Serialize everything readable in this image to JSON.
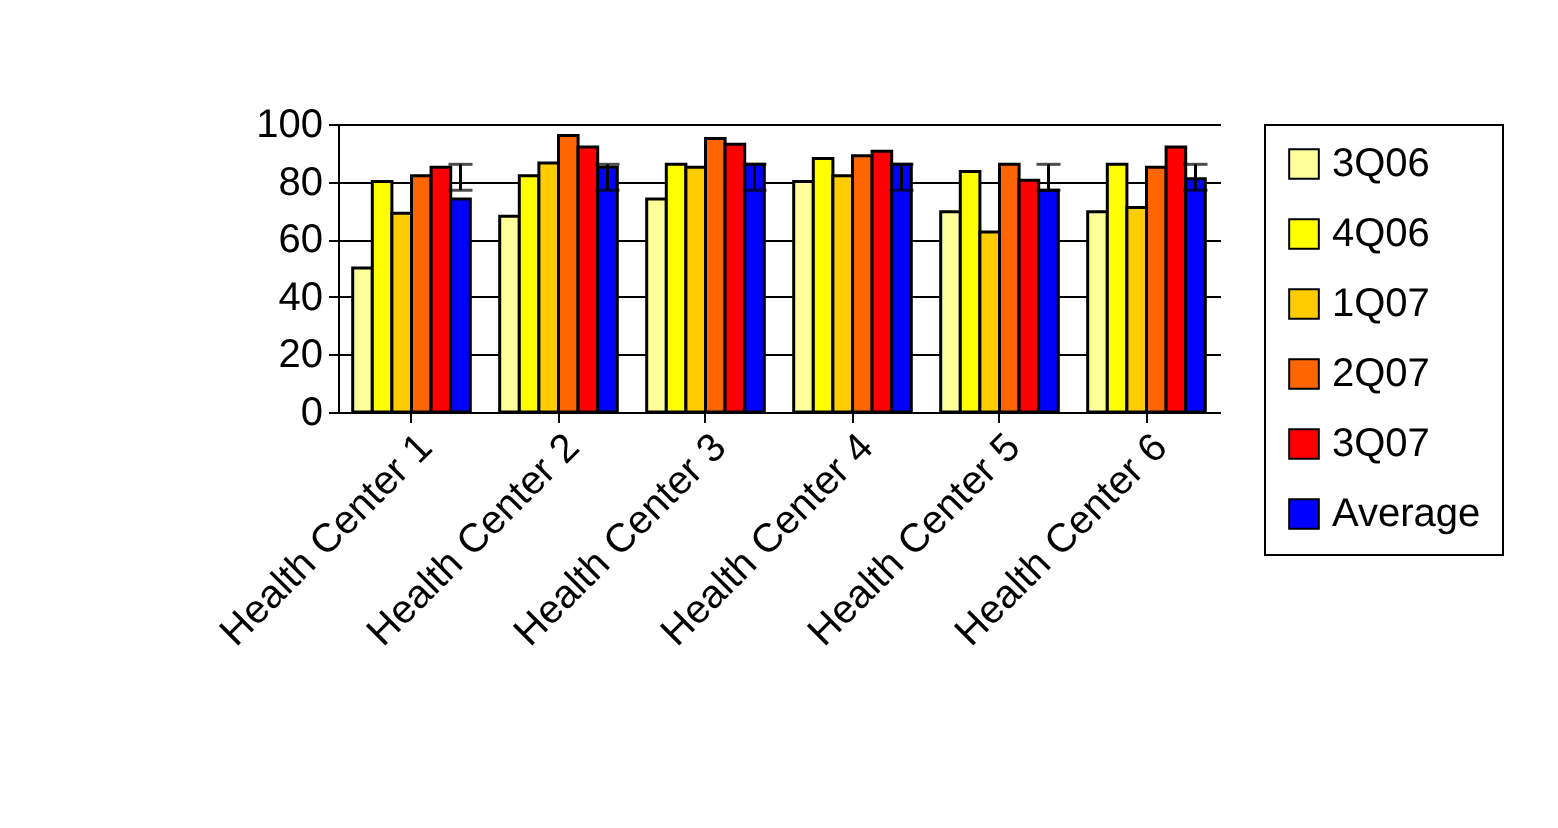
{
  "chart_data": {
    "type": "bar",
    "categories": [
      "Health Center 1",
      "Health Center 2",
      "Health Center 3",
      "Health Center 4",
      "Health Center 5",
      "Health Center 6"
    ],
    "series": [
      {
        "name": "3Q06",
        "color": "#ffff99",
        "values": [
          50,
          68,
          74,
          80,
          69.5,
          69.5
        ]
      },
      {
        "name": "4Q06",
        "color": "#ffff00",
        "values": [
          80,
          82,
          86,
          88,
          83.5,
          86
        ]
      },
      {
        "name": "1Q07",
        "color": "#ffcc00",
        "values": [
          69,
          86.5,
          85,
          82,
          62.5,
          71
        ]
      },
      {
        "name": "2Q07",
        "color": "#ff6600",
        "values": [
          82,
          96,
          95,
          89,
          86,
          85
        ]
      },
      {
        "name": "3Q07",
        "color": "#ff0000",
        "values": [
          85,
          92,
          93,
          90.5,
          80.5,
          92
        ]
      },
      {
        "name": "Average",
        "color": "#0000ff",
        "values": [
          74,
          85,
          86,
          86,
          77,
          81
        ],
        "errors": [
          [
            77,
            86
          ],
          [
            77,
            86
          ],
          [
            77,
            86
          ],
          [
            77,
            86
          ],
          [
            77,
            86
          ],
          [
            77,
            86
          ]
        ]
      }
    ],
    "ylim": [
      0,
      100
    ],
    "yticks": [
      0,
      20,
      40,
      60,
      80,
      100
    ],
    "grid": "y",
    "legend": "right"
  }
}
